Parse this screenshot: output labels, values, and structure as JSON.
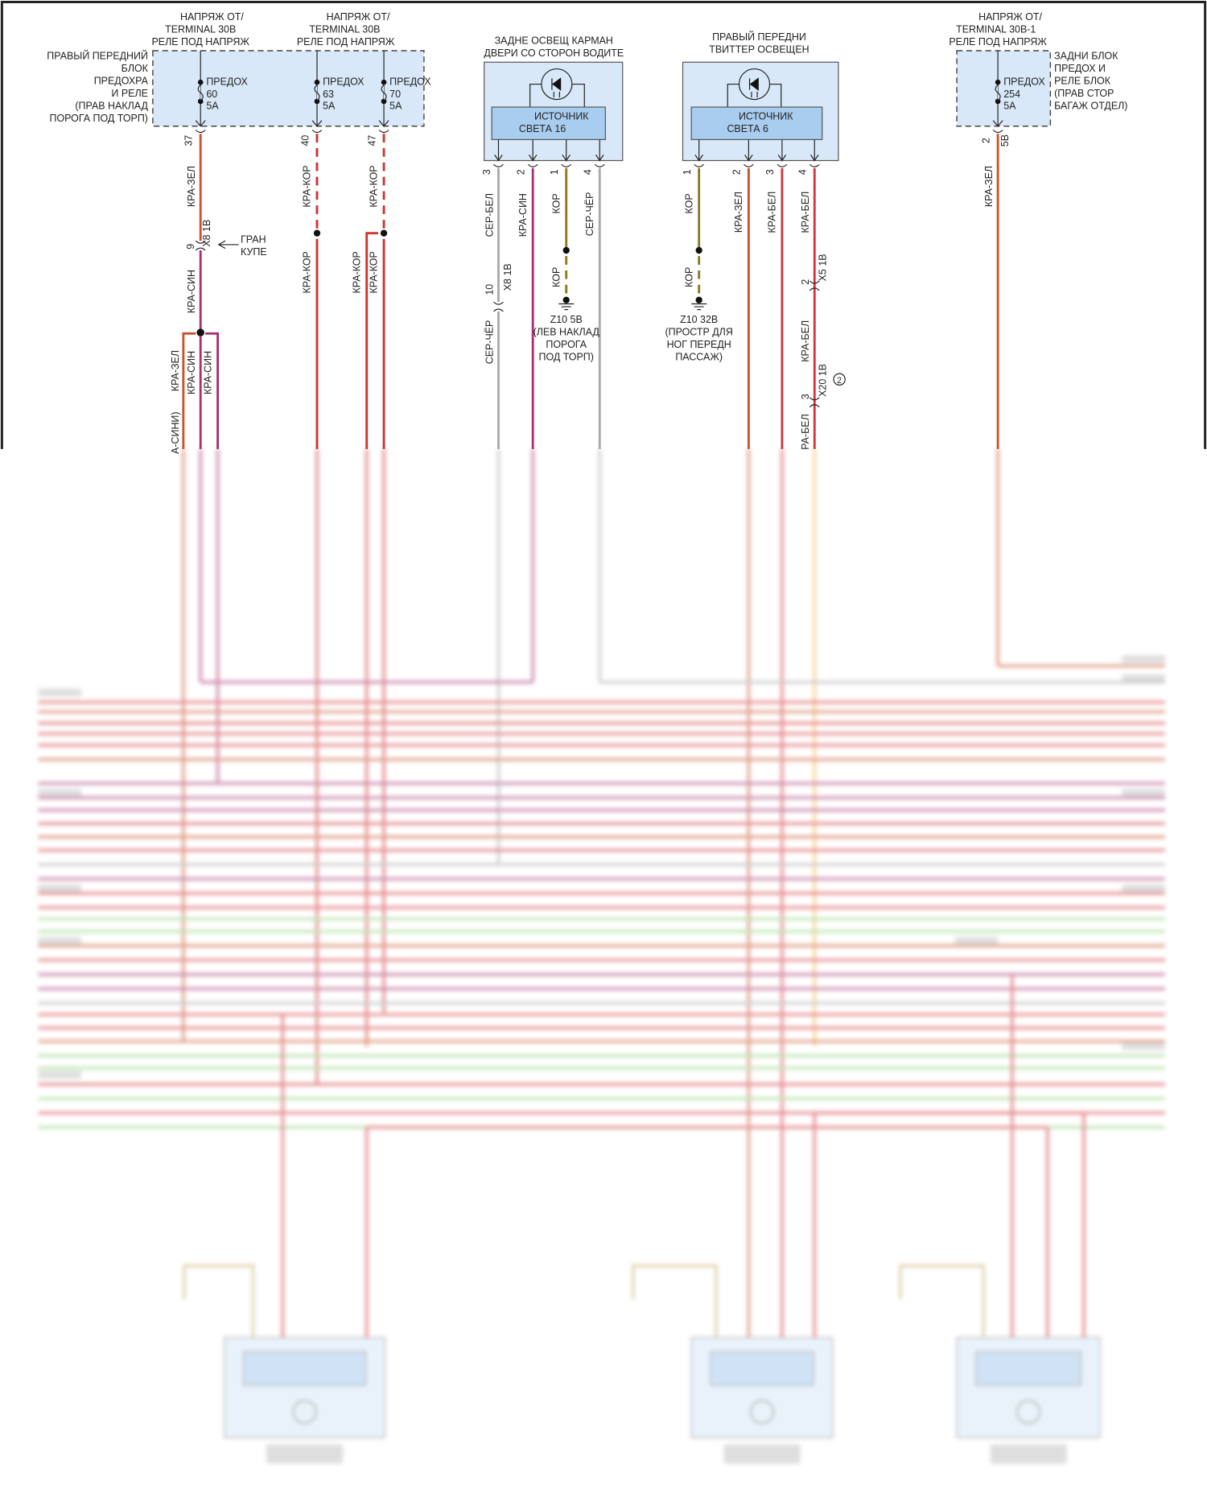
{
  "fuse_box_front": {
    "supply_labels": [
      [
        "НАПРЯЖ ОТ/",
        "TERMINAL 30B",
        "РЕЛЕ ПОД НАПРЯЖ"
      ],
      [
        "НАПРЯЖ ОТ/",
        "TERMINAL 30B",
        "РЕЛЕ ПОД НАПРЯЖ"
      ]
    ],
    "name_lines": [
      "ПРАВЫЙ ПЕРЕДНИЙ",
      "БЛОК",
      "ПРЕДОХРА",
      "И РЕЛЕ",
      "(ПРАВ НАКЛАД",
      "ПОРОГА ПОД ТОРП)"
    ],
    "fuses": [
      {
        "label": "ПРЕДОХ",
        "number": "60",
        "rating": "5A",
        "pin": "37"
      },
      {
        "label": "ПРЕДОХ",
        "number": "63",
        "rating": "5A",
        "pin": "40"
      },
      {
        "label": "ПРЕДОХ",
        "number": "70",
        "rating": "5A",
        "pin": "47"
      }
    ]
  },
  "fuse_box_rear": {
    "supply_label": [
      "НАПРЯЖ ОТ/",
      "TERMINAL 30B-1",
      "РЕЛЕ ПОД НАПРЯЖ"
    ],
    "name_lines": [
      "ЗАДНИ БЛОК",
      "ПРЕДОХ И",
      "РЕЛЕ БЛОК",
      "(ПРАВ СТОР",
      "БАГАЖ ОТДЕЛ)"
    ],
    "fuse": {
      "label": "ПРЕДОХ",
      "number": "254",
      "rating": "5A",
      "pin": "2",
      "connector": "5B"
    },
    "wire_color": "КРА-ЗЕЛ"
  },
  "light_door": {
    "title": [
      "ЗАДНЕ ОСВЕЩ КАРМАН",
      "ДВЕРИ СО СТОРОН ВОДИТЕ"
    ],
    "module": [
      "ИСТОЧНИК",
      "СВЕТА 16"
    ],
    "pins": [
      "3",
      "2",
      "1",
      "4"
    ],
    "wires": [
      "СЕР-БЕЛ",
      "КРА-СИН",
      "КОР",
      "СЕР-ЧЁР"
    ],
    "connector": {
      "pin": "10",
      "name": "X8 1B",
      "wire_after": "СЕР-ЧЁР"
    },
    "ground": {
      "wire": "КОР",
      "lines": [
        "Z10 5B",
        "(ЛЕВ НАКЛАД",
        "ПОРОГА",
        "ПОД ТОРП)"
      ]
    }
  },
  "light_tweeter": {
    "title": [
      "ПРАВЫЙ ПЕРЕДНИ",
      "ТВИТТЕР ОСВЕЩЕН"
    ],
    "module": [
      "ИСТОЧНИК",
      "СВЕТА 6"
    ],
    "pins": [
      "1",
      "2",
      "3",
      "4"
    ],
    "wires": [
      "КОР",
      "КРА-ЗЕЛ",
      "КРА-БЕЛ",
      "КРА-БЕЛ"
    ],
    "ground": {
      "wire": "КОР",
      "lines": [
        "Z10 32B",
        "(ПРОСТР ДЛЯ",
        "НОГ ПЕРЕДН",
        "ПАССАЖ)"
      ]
    },
    "connector_x5": {
      "pin": "2",
      "name": "X5 1B"
    },
    "connector_x20": {
      "pin": "3",
      "name": "X20 1B",
      "note": "2"
    },
    "wire_mid": "КРА-БЕЛ",
    "wire_low": "РА-БЕЛ"
  },
  "fuse60_wiring": {
    "wire_top": "КРА-ЗЕЛ",
    "connector": {
      "pin": "9",
      "name": "X8 1B"
    },
    "boundary": [
      "ГРАН",
      "КУПЕ"
    ],
    "wire_mid": "КРА-СИН",
    "branches": [
      "КРА-ЗЕЛ",
      "КРА-СИН",
      "КРА-СИН"
    ],
    "cut_label": "А-СИНИ)"
  },
  "fuse63_wiring": {
    "wire_top": "КРА-КОР",
    "wire_bottom": "КРА-КОР"
  },
  "fuse70_wiring": {
    "wire_top": "КРА-КОР",
    "branches": [
      "КРА-КОР",
      "КРА-КОР"
    ]
  },
  "colors": {
    "red_green": "#c9532b",
    "red_blue": "#a8326e",
    "red_brown": "#d0312d",
    "red_white": "#d4343a",
    "brown": "#8a7a1c",
    "grey": "#a9a9a9",
    "module_fill": "#d8e8f8",
    "module_inner": "#a9cdef"
  }
}
